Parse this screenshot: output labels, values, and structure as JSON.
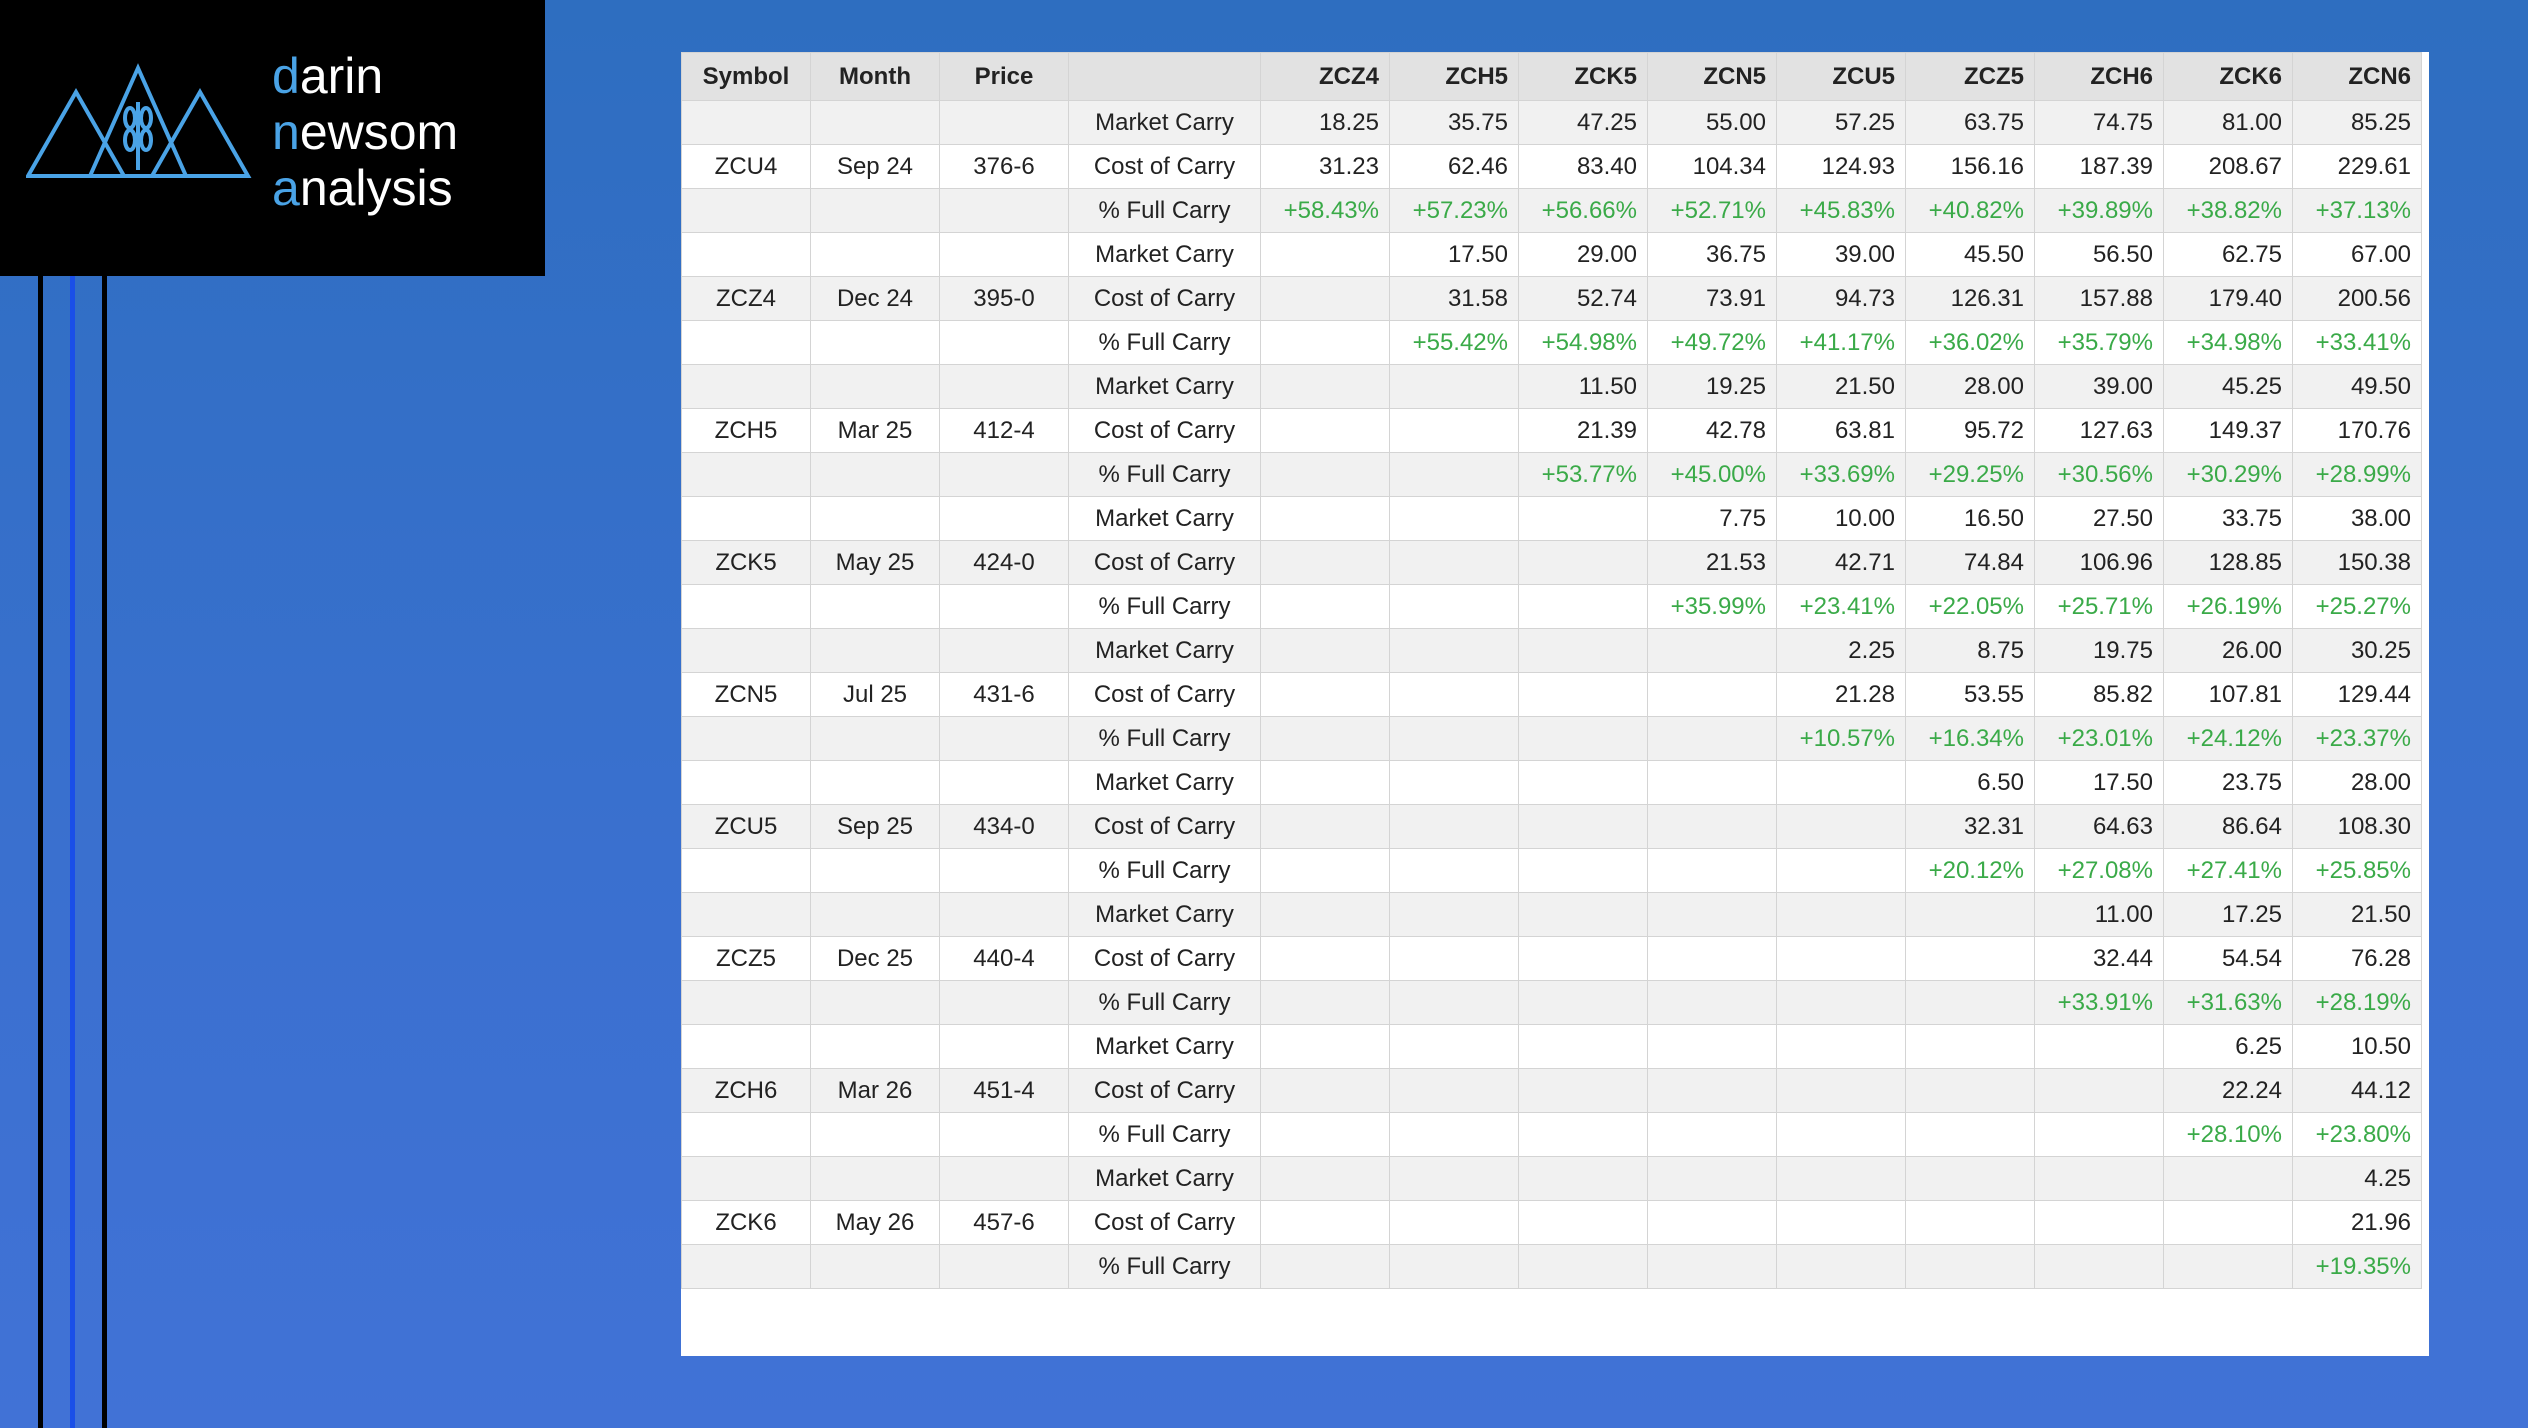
{
  "logo": {
    "line1": "darin",
    "line2": "newsom",
    "line3": "analysis"
  },
  "table": {
    "headers": [
      "Symbol",
      "Month",
      "Price"
    ],
    "contracts": [
      "ZCZ4",
      "ZCH5",
      "ZCK5",
      "ZCN5",
      "ZCU5",
      "ZCZ5",
      "ZCH6",
      "ZCK6",
      "ZCN6"
    ],
    "groups": [
      {
        "symbol": "ZCU4",
        "month": "Sep 24",
        "price": "376-6",
        "rows": [
          {
            "label": "Market Carry",
            "cells": [
              "18.25",
              "35.75",
              "47.25",
              "55.00",
              "57.25",
              "63.75",
              "74.75",
              "81.00",
              "85.25"
            ]
          },
          {
            "label": "Cost of Carry",
            "cells": [
              "31.23",
              "62.46",
              "83.40",
              "104.34",
              "124.93",
              "156.16",
              "187.39",
              "208.67",
              "229.61"
            ]
          },
          {
            "label": "% Full Carry",
            "cells": [
              "+58.43%",
              "+57.23%",
              "+56.66%",
              "+52.71%",
              "+45.83%",
              "+40.82%",
              "+39.89%",
              "+38.82%",
              "+37.13%"
            ]
          }
        ]
      },
      {
        "symbol": "ZCZ4",
        "month": "Dec 24",
        "price": "395-0",
        "rows": [
          {
            "label": "Market Carry",
            "cells": [
              null,
              "17.50",
              "29.00",
              "36.75",
              "39.00",
              "45.50",
              "56.50",
              "62.75",
              "67.00"
            ]
          },
          {
            "label": "Cost of Carry",
            "cells": [
              null,
              "31.58",
              "52.74",
              "73.91",
              "94.73",
              "126.31",
              "157.88",
              "179.40",
              "200.56"
            ]
          },
          {
            "label": "% Full Carry",
            "cells": [
              null,
              "+55.42%",
              "+54.98%",
              "+49.72%",
              "+41.17%",
              "+36.02%",
              "+35.79%",
              "+34.98%",
              "+33.41%"
            ]
          }
        ]
      },
      {
        "symbol": "ZCH5",
        "month": "Mar 25",
        "price": "412-4",
        "rows": [
          {
            "label": "Market Carry",
            "cells": [
              null,
              null,
              "11.50",
              "19.25",
              "21.50",
              "28.00",
              "39.00",
              "45.25",
              "49.50"
            ]
          },
          {
            "label": "Cost of Carry",
            "cells": [
              null,
              null,
              "21.39",
              "42.78",
              "63.81",
              "95.72",
              "127.63",
              "149.37",
              "170.76"
            ]
          },
          {
            "label": "% Full Carry",
            "cells": [
              null,
              null,
              "+53.77%",
              "+45.00%",
              "+33.69%",
              "+29.25%",
              "+30.56%",
              "+30.29%",
              "+28.99%"
            ]
          }
        ]
      },
      {
        "symbol": "ZCK5",
        "month": "May 25",
        "price": "424-0",
        "rows": [
          {
            "label": "Market Carry",
            "cells": [
              null,
              null,
              null,
              "7.75",
              "10.00",
              "16.50",
              "27.50",
              "33.75",
              "38.00"
            ]
          },
          {
            "label": "Cost of Carry",
            "cells": [
              null,
              null,
              null,
              "21.53",
              "42.71",
              "74.84",
              "106.96",
              "128.85",
              "150.38"
            ]
          },
          {
            "label": "% Full Carry",
            "cells": [
              null,
              null,
              null,
              "+35.99%",
              "+23.41%",
              "+22.05%",
              "+25.71%",
              "+26.19%",
              "+25.27%"
            ]
          }
        ]
      },
      {
        "symbol": "ZCN5",
        "month": "Jul 25",
        "price": "431-6",
        "rows": [
          {
            "label": "Market Carry",
            "cells": [
              null,
              null,
              null,
              null,
              "2.25",
              "8.75",
              "19.75",
              "26.00",
              "30.25"
            ]
          },
          {
            "label": "Cost of Carry",
            "cells": [
              null,
              null,
              null,
              null,
              "21.28",
              "53.55",
              "85.82",
              "107.81",
              "129.44"
            ]
          },
          {
            "label": "% Full Carry",
            "cells": [
              null,
              null,
              null,
              null,
              "+10.57%",
              "+16.34%",
              "+23.01%",
              "+24.12%",
              "+23.37%"
            ]
          }
        ]
      },
      {
        "symbol": "ZCU5",
        "month": "Sep 25",
        "price": "434-0",
        "rows": [
          {
            "label": "Market Carry",
            "cells": [
              null,
              null,
              null,
              null,
              null,
              "6.50",
              "17.50",
              "23.75",
              "28.00"
            ]
          },
          {
            "label": "Cost of Carry",
            "cells": [
              null,
              null,
              null,
              null,
              null,
              "32.31",
              "64.63",
              "86.64",
              "108.30"
            ]
          },
          {
            "label": "% Full Carry",
            "cells": [
              null,
              null,
              null,
              null,
              null,
              "+20.12%",
              "+27.08%",
              "+27.41%",
              "+25.85%"
            ]
          }
        ]
      },
      {
        "symbol": "ZCZ5",
        "month": "Dec 25",
        "price": "440-4",
        "rows": [
          {
            "label": "Market Carry",
            "cells": [
              null,
              null,
              null,
              null,
              null,
              null,
              "11.00",
              "17.25",
              "21.50"
            ]
          },
          {
            "label": "Cost of Carry",
            "cells": [
              null,
              null,
              null,
              null,
              null,
              null,
              "32.44",
              "54.54",
              "76.28"
            ]
          },
          {
            "label": "% Full Carry",
            "cells": [
              null,
              null,
              null,
              null,
              null,
              null,
              "+33.91%",
              "+31.63%",
              "+28.19%"
            ]
          }
        ]
      },
      {
        "symbol": "ZCH6",
        "month": "Mar 26",
        "price": "451-4",
        "rows": [
          {
            "label": "Market Carry",
            "cells": [
              null,
              null,
              null,
              null,
              null,
              null,
              null,
              "6.25",
              "10.50"
            ]
          },
          {
            "label": "Cost of Carry",
            "cells": [
              null,
              null,
              null,
              null,
              null,
              null,
              null,
              "22.24",
              "44.12"
            ]
          },
          {
            "label": "% Full Carry",
            "cells": [
              null,
              null,
              null,
              null,
              null,
              null,
              null,
              "+28.10%",
              "+23.80%"
            ]
          }
        ]
      },
      {
        "symbol": "ZCK6",
        "month": "May 26",
        "price": "457-6",
        "rows": [
          {
            "label": "Market Carry",
            "cells": [
              null,
              null,
              null,
              null,
              null,
              null,
              null,
              null,
              "4.25"
            ]
          },
          {
            "label": "Cost of Carry",
            "cells": [
              null,
              null,
              null,
              null,
              null,
              null,
              null,
              null,
              "21.96"
            ]
          },
          {
            "label": "% Full Carry",
            "cells": [
              null,
              null,
              null,
              null,
              null,
              null,
              null,
              null,
              "+19.35%"
            ]
          }
        ]
      }
    ]
  }
}
